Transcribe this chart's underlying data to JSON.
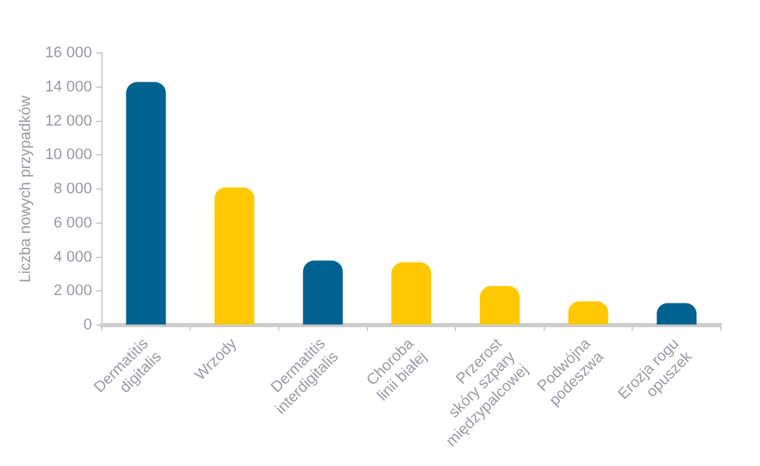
{
  "chart_data": {
    "type": "bar",
    "ylabel": "Liczba nowych przypadków",
    "categories": [
      "Dermatitis\ndigitalis",
      "Wrzody",
      "Dermatitis\ninterdigitalis",
      "Choroba\nlinii białej",
      "Przerost\nskóry szpary\nmiędzypalcowej",
      "Podwójna\npodeszwa",
      "Erozja rogu\nopuszek"
    ],
    "values": [
      14300,
      8100,
      3800,
      3700,
      2300,
      1400,
      1300
    ],
    "colors": [
      "#00628f",
      "#ffc800",
      "#00628f",
      "#ffc800",
      "#ffc800",
      "#ffc800",
      "#00628f"
    ],
    "ylim": [
      0,
      16000
    ],
    "yticks": [
      {
        "value": 0,
        "label": "0"
      },
      {
        "value": 2000,
        "label": "2 000"
      },
      {
        "value": 4000,
        "label": "4 000"
      },
      {
        "value": 6000,
        "label": "6 000"
      },
      {
        "value": 8000,
        "label": "8 000"
      },
      {
        "value": 10000,
        "label": "10 000"
      },
      {
        "value": 12000,
        "label": "12 000"
      },
      {
        "value": 14000,
        "label": "14 000"
      },
      {
        "value": 16000,
        "label": "16 000"
      }
    ],
    "grid": false,
    "legend": false
  }
}
